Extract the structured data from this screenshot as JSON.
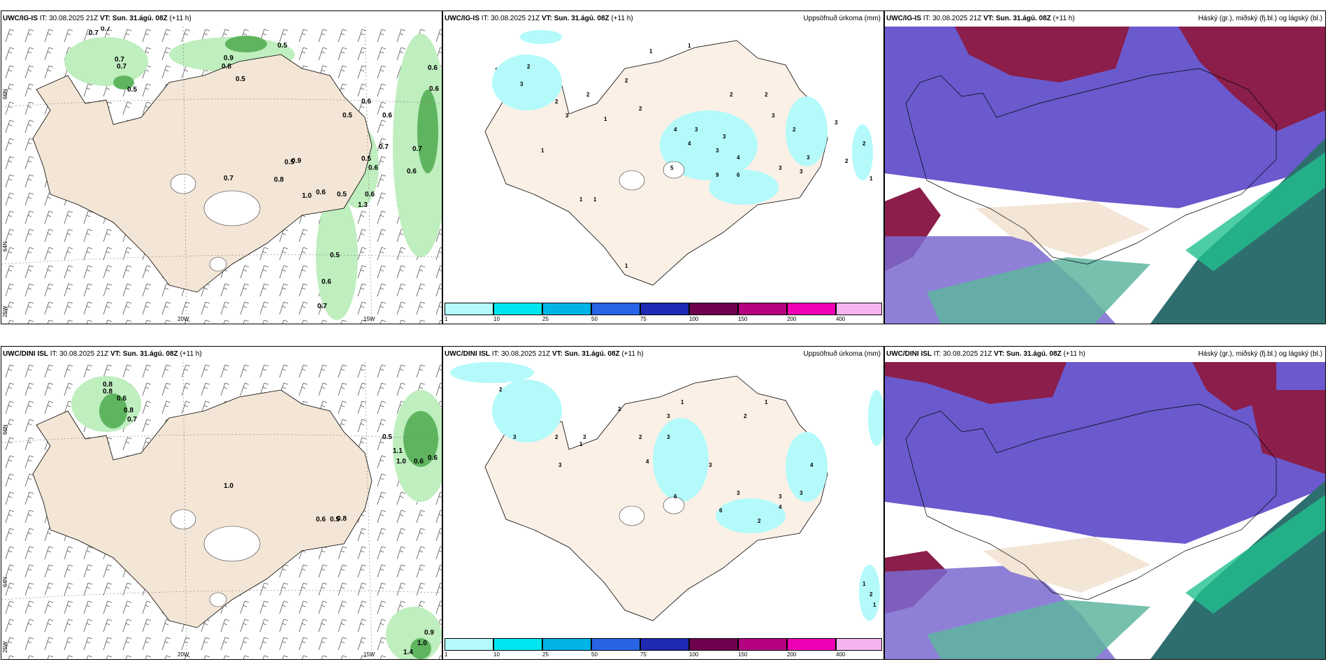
{
  "panels": {
    "top_left": {
      "model": "UWC/IG-IS",
      "it": "30.08.2025 21Z",
      "vt": "Sun. 31.ágú. 08Z",
      "lead": "(+11 h)",
      "right": ""
    },
    "top_mid": {
      "model": "UWC/IG-IS",
      "it": "30.08.2025 21Z",
      "vt": "Sun. 31.ágú. 08Z",
      "lead": "(+11 h)",
      "right": "Uppsöfnuð úrkoma (mm)"
    },
    "top_right": {
      "model": "UWC/IG-IS",
      "it": "30.08.2025 21Z",
      "vt": "Sun. 31.ágú. 08Z",
      "lead": "(+11 h)",
      "right": "Háský (gr.), miðský (fj.bl.) og lágský (bl.)"
    },
    "bot_left": {
      "model": "UWC/DINI ISL",
      "it": "30.08.2025 21Z",
      "vt": "Sun. 31.ágú. 08Z",
      "lead": "(+11 h)",
      "right": ""
    },
    "bot_mid": {
      "model": "UWC/DINI ISL",
      "it": "30.08.2025 21Z",
      "vt": "Sun. 31.ágú. 08Z",
      "lead": "(+11 h)",
      "right": "Uppsöfnuð úrkoma (mm)"
    },
    "bot_right": {
      "model": "UWC/DINI ISL",
      "it": "30.08.2025 21Z",
      "vt": "Sun. 31.ágú. 08Z",
      "lead": "(+11 h)",
      "right": "Háský (gr.), miðský (fj.bl.) og lágský (bl.)"
    }
  },
  "labels": {
    "it": "IT:",
    "vt": "VT:"
  },
  "axis_labels": {
    "lat66": "66N",
    "lat64": "64N",
    "lon25": "25W",
    "lon20": "20W",
    "lon15": "15W"
  },
  "colorbar": {
    "ticks": [
      "1",
      "10",
      "25",
      "50",
      "75",
      "100",
      "150",
      "200",
      "400"
    ],
    "colors": [
      "#b4fafa",
      "#00e6f0",
      "#00b4e6",
      "#2864e6",
      "#1e2ab4",
      "#6e0050",
      "#b4007e",
      "#f000b4",
      "#f5b4f0"
    ]
  },
  "top_left_values": [
    "0.7",
    "0.7",
    "0.7",
    "0.7",
    "0.5",
    "0.8",
    "0.5",
    "0.9",
    "0.5",
    "0.6",
    "0.6",
    "0.5",
    "0.6",
    "0.6",
    "0.7",
    "0.7",
    "0.5",
    "0.6",
    "0.6",
    "0.5",
    "0.6",
    "0.9",
    "1.3",
    "0.5",
    "0.6",
    "0.7",
    "0.8",
    "0.5",
    "1.0",
    "0.6",
    "0.7"
  ],
  "bot_left_values": [
    "0.8",
    "0.8",
    "0.6",
    "0.8",
    "0.7",
    "1.0",
    "0.6",
    "1.1",
    "1.0",
    "0.6",
    "0.5",
    "0.8",
    "0.6",
    "0.5",
    "0.9",
    "1.0",
    "1.4"
  ],
  "top_mid_values": [
    "1",
    "1",
    "2",
    "3",
    "2",
    "3",
    "1",
    "2",
    "2",
    "4",
    "2",
    "2",
    "3",
    "1",
    "3",
    "2",
    "3",
    "4",
    "3",
    "4",
    "2",
    "3",
    "5",
    "9",
    "6",
    "3",
    "3",
    "1",
    "3",
    "2",
    "1",
    "1",
    "1",
    "2"
  ],
  "bot_mid_values": [
    "2",
    "3",
    "2",
    "3",
    "3",
    "1",
    "2",
    "3",
    "1",
    "2",
    "3",
    "4",
    "3",
    "2",
    "1",
    "6",
    "6",
    "3",
    "3",
    "4",
    "4",
    "2",
    "3",
    "1",
    "1",
    "2"
  ]
}
